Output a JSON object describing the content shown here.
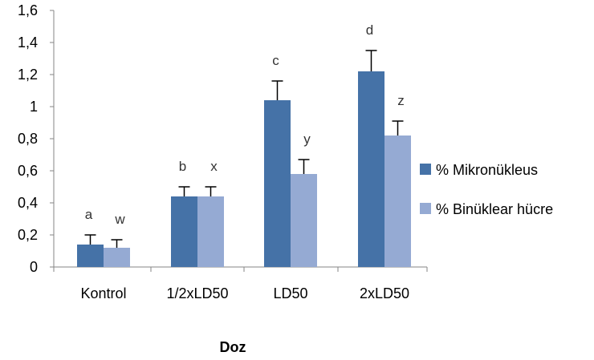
{
  "chart_data": {
    "type": "bar",
    "title": "",
    "xlabel": "Doz",
    "ylabel": "",
    "categories": [
      "Kontrol",
      "1/2xLD50",
      "LD50",
      "2xLD50"
    ],
    "ylim": [
      0,
      1.6
    ],
    "yticks": [
      "0",
      "0,2",
      "0,4",
      "0,6",
      "0,8",
      "1",
      "1,2",
      "1,4",
      "1,6"
    ],
    "ytick_values": [
      0,
      0.2,
      0.4,
      0.6,
      0.8,
      1.0,
      1.2,
      1.4,
      1.6
    ],
    "grid": false,
    "legend_position": "right",
    "series": [
      {
        "name": "% Mikronükleus",
        "color": "#4572A7",
        "values": [
          0.14,
          0.44,
          1.04,
          1.22
        ],
        "errors": [
          0.06,
          0.06,
          0.12,
          0.13
        ],
        "labels": [
          "a",
          "b",
          "c",
          "d"
        ]
      },
      {
        "name": "% Binüklear hücre",
        "color": "#95AAD3",
        "values": [
          0.12,
          0.44,
          0.58,
          0.82
        ],
        "errors": [
          0.05,
          0.06,
          0.09,
          0.09
        ],
        "labels": [
          "w",
          "x",
          "y",
          "z"
        ]
      }
    ]
  }
}
